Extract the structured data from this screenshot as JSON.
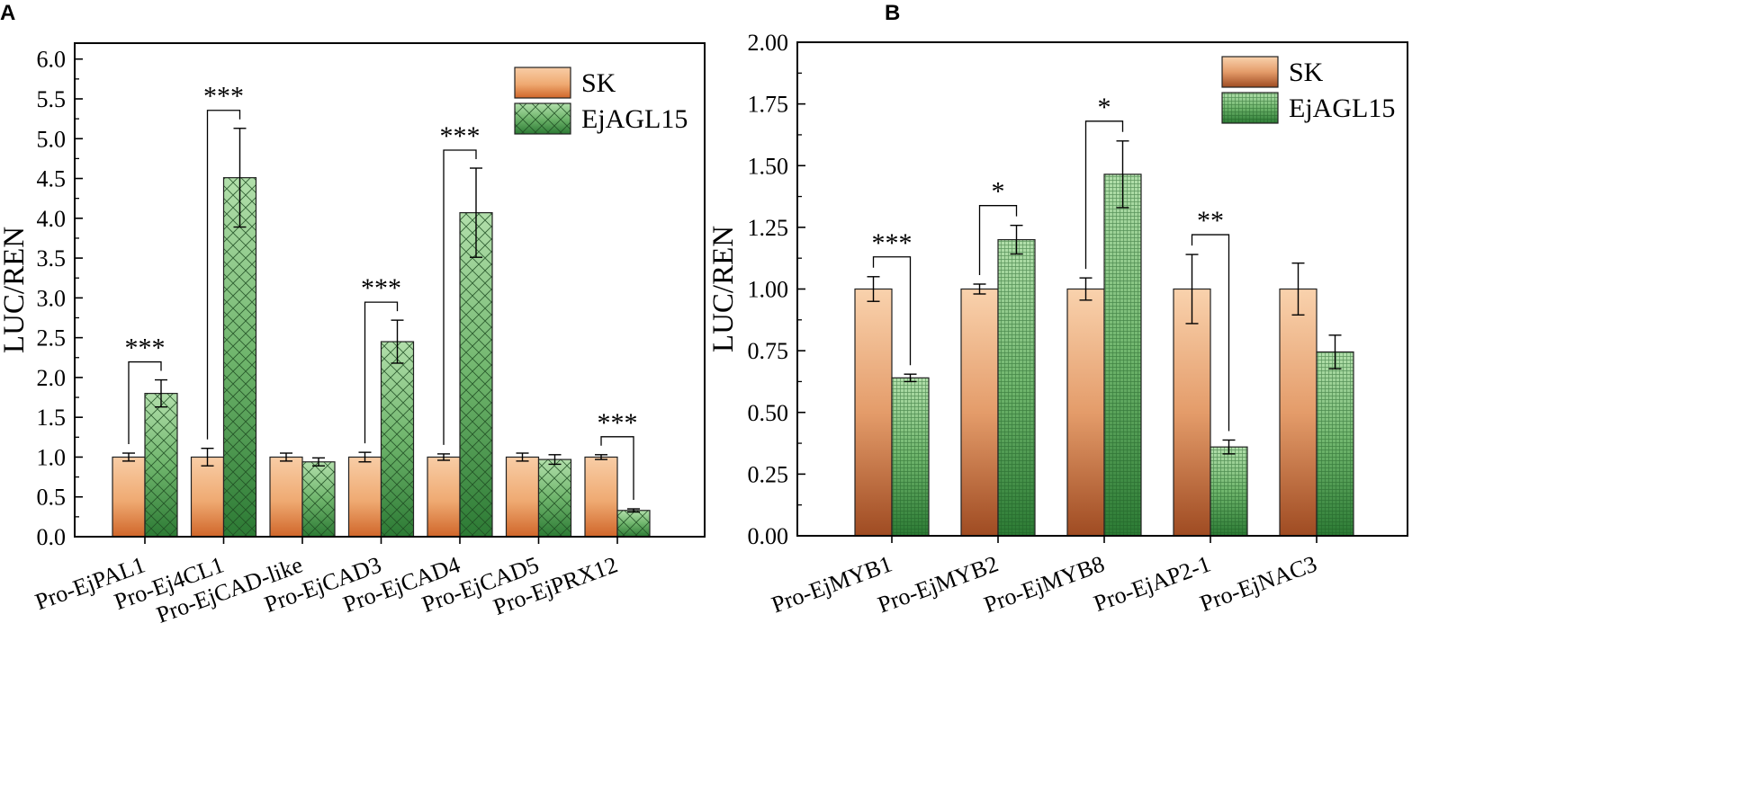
{
  "chart_data": [
    {
      "panel_label": "A",
      "type": "bar",
      "ylabel": "LUC/REN",
      "ylim": [
        0,
        6.2
      ],
      "yticks": [
        "0.0",
        "0.5",
        "1.0",
        "1.5",
        "2.0",
        "2.5",
        "3.0",
        "3.5",
        "4.0",
        "4.5",
        "5.0",
        "5.5",
        "6.0"
      ],
      "categories": [
        "Pro-EjPAL1",
        "Pro-Ej4CL1",
        "Pro-EjCAD-like",
        "Pro-EjCAD3",
        "Pro-EjCAD4",
        "Pro-EjCAD5",
        "Pro-EjPRX12"
      ],
      "series": [
        {
          "name": "SK",
          "values": [
            1.0,
            1.0,
            1.0,
            1.0,
            1.0,
            1.0,
            1.0
          ],
          "errors": [
            0.05,
            0.11,
            0.05,
            0.06,
            0.04,
            0.05,
            0.03
          ]
        },
        {
          "name": "EjAGL15",
          "values": [
            1.8,
            4.51,
            0.94,
            2.45,
            4.07,
            0.97,
            0.33
          ],
          "errors": [
            0.17,
            0.62,
            0.05,
            0.27,
            0.56,
            0.06,
            0.02
          ]
        }
      ],
      "significance": [
        "***",
        "***",
        "",
        "***",
        "***",
        "",
        "***"
      ],
      "legend": "top-right",
      "grid": false
    },
    {
      "panel_label": "B",
      "type": "bar",
      "ylabel": "LUC/REN",
      "ylim": [
        0,
        2.0
      ],
      "yticks": [
        "0.00",
        "0.25",
        "0.50",
        "0.75",
        "1.00",
        "1.25",
        "1.50",
        "1.75",
        "2.00"
      ],
      "categories": [
        "Pro-EjMYB1",
        "Pro-EjMYB2",
        "Pro-EjMYB8",
        "Pro-EjAP2-1",
        "Pro-EjNAC3"
      ],
      "series": [
        {
          "name": "SK",
          "values": [
            1.0,
            1.0,
            1.0,
            1.0,
            1.0
          ],
          "errors": [
            0.05,
            0.02,
            0.045,
            0.14,
            0.105
          ]
        },
        {
          "name": "EjAGL15",
          "values": [
            0.64,
            1.2,
            1.465,
            0.36,
            0.745
          ],
          "errors": [
            0.015,
            0.058,
            0.135,
            0.028,
            0.068
          ]
        }
      ],
      "significance": [
        "***",
        "*",
        "*",
        "**",
        ""
      ],
      "legend": "top-right",
      "grid": false
    }
  ],
  "colors": {
    "sk_top": "#f7c9a0",
    "sk_bottom_a": "#d2692a",
    "sk_bottom_b": "#a24e22",
    "agl_top": "#a7d8a0",
    "agl_bottom": "#2f7f38"
  }
}
